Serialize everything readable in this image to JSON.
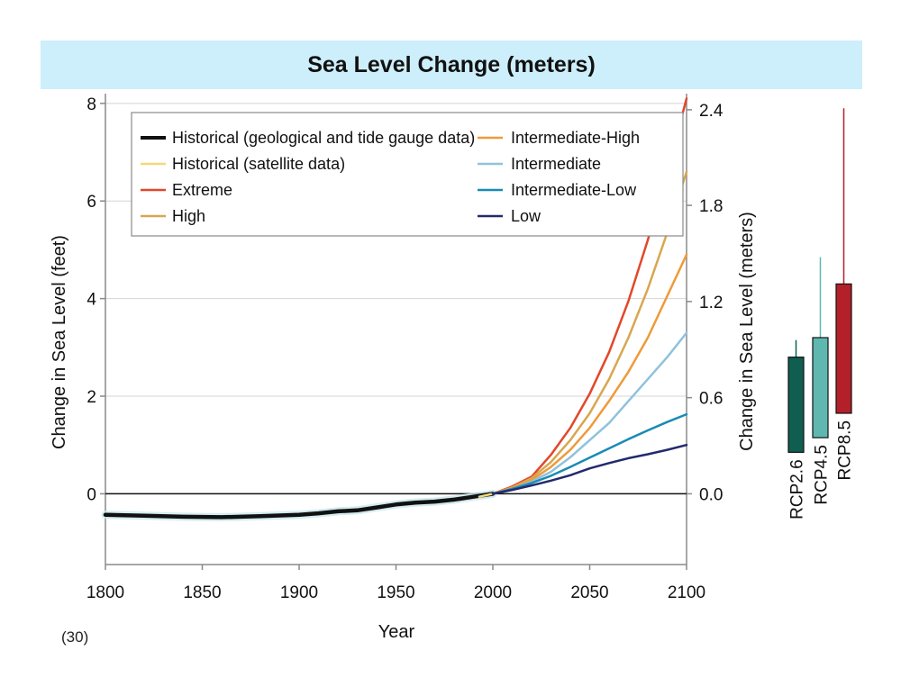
{
  "title": "Sea Level Change (meters)",
  "footnote": "(30)",
  "colors": {
    "title_band": "#cdeefb",
    "historical_geological": "#111111",
    "historical_satellite": "#f3d97a",
    "extreme": "#e2472a",
    "high": "#d7a74f",
    "intermediate_high": "#ef9a3a",
    "intermediate": "#8fc2dc",
    "intermediate_low": "#1a8bb3",
    "low": "#232a6e",
    "rcp26": "#0f5e50",
    "rcp45": "#5fb8b0",
    "rcp85": "#b3202a"
  },
  "chart_data": [
    {
      "type": "line",
      "title": "Sea Level Change (meters)",
      "xlabel": "Year",
      "ylabel": "Change in Sea Level (feet)",
      "ylabel_right": "Change in Sea Level (meters)",
      "xlim": [
        1800,
        2100
      ],
      "ylim": [
        -1.45,
        8.2
      ],
      "x_ticks": [
        1800,
        1850,
        1900,
        1950,
        2000,
        2050,
        2100
      ],
      "y_ticks": [
        0,
        2,
        4,
        6,
        8
      ],
      "y_ticks_right": [
        "0.0",
        "0.6",
        "1.2",
        "1.8",
        "2.4"
      ],
      "y_ticks_right_feet": [
        0,
        1.97,
        3.94,
        5.91,
        7.87
      ],
      "grid": true,
      "legend": "top-left",
      "series": [
        {
          "name": "Historical (geological and tide gauge data)",
          "color_key": "historical_geological",
          "x": [
            1800,
            1820,
            1840,
            1860,
            1880,
            1900,
            1910,
            1920,
            1930,
            1940,
            1950,
            1960,
            1970,
            1980,
            1990,
            2000
          ],
          "y": [
            -0.43,
            -0.45,
            -0.47,
            -0.48,
            -0.46,
            -0.43,
            -0.4,
            -0.36,
            -0.34,
            -0.28,
            -0.22,
            -0.18,
            -0.16,
            -0.12,
            -0.06,
            0.0
          ]
        },
        {
          "name": "Historical (satellite data)",
          "color_key": "historical_satellite",
          "x": [
            1993,
            2000,
            2005,
            2010,
            2015
          ],
          "y": [
            -0.06,
            0.0,
            0.06,
            0.12,
            0.18
          ]
        },
        {
          "name": "Extreme",
          "color_key": "extreme",
          "x": [
            2000,
            2010,
            2020,
            2030,
            2040,
            2050,
            2060,
            2070,
            2080,
            2090,
            2100
          ],
          "y": [
            0.0,
            0.15,
            0.35,
            0.8,
            1.35,
            2.05,
            2.9,
            3.95,
            5.2,
            6.6,
            8.1
          ]
        },
        {
          "name": "High",
          "color_key": "high",
          "x": [
            2000,
            2010,
            2020,
            2030,
            2040,
            2050,
            2060,
            2070,
            2080,
            2090,
            2100
          ],
          "y": [
            0.0,
            0.13,
            0.32,
            0.65,
            1.1,
            1.65,
            2.35,
            3.2,
            4.2,
            5.35,
            6.6
          ]
        },
        {
          "name": "Intermediate-High",
          "color_key": "intermediate_high",
          "x": [
            2000,
            2010,
            2020,
            2030,
            2040,
            2050,
            2060,
            2070,
            2080,
            2090,
            2100
          ],
          "y": [
            0.0,
            0.12,
            0.28,
            0.55,
            0.9,
            1.35,
            1.9,
            2.5,
            3.2,
            4.05,
            4.9
          ]
        },
        {
          "name": "Intermediate",
          "color_key": "intermediate",
          "x": [
            2000,
            2010,
            2020,
            2030,
            2040,
            2050,
            2060,
            2070,
            2080,
            2090,
            2100
          ],
          "y": [
            0.0,
            0.1,
            0.25,
            0.45,
            0.75,
            1.1,
            1.45,
            1.9,
            2.35,
            2.8,
            3.3
          ]
        },
        {
          "name": "Intermediate-Low",
          "color_key": "intermediate_low",
          "x": [
            2000,
            2010,
            2020,
            2030,
            2040,
            2050,
            2060,
            2070,
            2080,
            2090,
            2100
          ],
          "y": [
            0.0,
            0.1,
            0.22,
            0.37,
            0.55,
            0.74,
            0.93,
            1.12,
            1.3,
            1.47,
            1.63
          ]
        },
        {
          "name": "Low",
          "color_key": "low",
          "x": [
            2000,
            2010,
            2020,
            2030,
            2040,
            2050,
            2060,
            2070,
            2080,
            2090,
            2100
          ],
          "y": [
            0.0,
            0.08,
            0.17,
            0.27,
            0.38,
            0.52,
            0.63,
            0.73,
            0.81,
            0.9,
            1.0
          ]
        }
      ]
    },
    {
      "type": "bar",
      "title": "",
      "orientation": "vertical",
      "units": "feet",
      "categories": [
        "RCP2.6",
        "RCP4.5",
        "RCP8.5"
      ],
      "boxes": [
        {
          "name": "RCP2.6",
          "color_key": "rcp26",
          "low": 0.85,
          "high": 2.8,
          "whisker_high": 3.15
        },
        {
          "name": "RCP4.5",
          "color_key": "rcp45",
          "low": 1.15,
          "high": 3.2,
          "whisker_high": 4.85
        },
        {
          "name": "RCP8.5",
          "color_key": "rcp85",
          "low": 1.65,
          "high": 4.3,
          "whisker_high": 7.9
        }
      ]
    }
  ]
}
